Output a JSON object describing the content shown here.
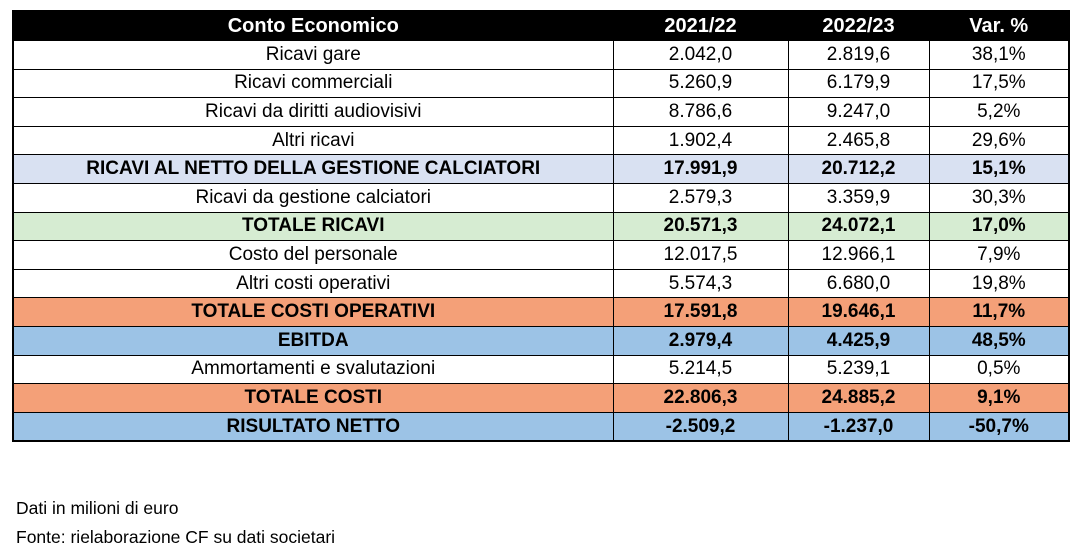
{
  "table": {
    "columns": [
      "Conto Economico",
      "2021/22",
      "2022/23",
      "Var. %"
    ],
    "rows": [
      {
        "label": "Ricavi gare",
        "y2122": "2.042,0",
        "y2223": "2.819,6",
        "var": "38,1%",
        "style": "plain"
      },
      {
        "label": "Ricavi commerciali",
        "y2122": "5.260,9",
        "y2223": "6.179,9",
        "var": "17,5%",
        "style": "plain"
      },
      {
        "label": "Ricavi da diritti audiovisivi",
        "y2122": "8.786,6",
        "y2223": "9.247,0",
        "var": "5,2%",
        "style": "plain"
      },
      {
        "label": "Altri ricavi",
        "y2122": "1.902,4",
        "y2223": "2.465,8",
        "var": "29,6%",
        "style": "plain"
      },
      {
        "label": "RICAVI AL NETTO DELLA GESTIONE CALCIATORI",
        "y2122": "17.991,9",
        "y2223": "20.712,2",
        "var": "15,1%",
        "style": "lavender"
      },
      {
        "label": "Ricavi da gestione calciatori",
        "y2122": "2.579,3",
        "y2223": "3.359,9",
        "var": "30,3%",
        "style": "plain"
      },
      {
        "label": "TOTALE RICAVI",
        "y2122": "20.571,3",
        "y2223": "24.072,1",
        "var": "17,0%",
        "style": "green"
      },
      {
        "label": "Costo del personale",
        "y2122": "12.017,5",
        "y2223": "12.966,1",
        "var": "7,9%",
        "style": "plain"
      },
      {
        "label": "Altri costi operativi",
        "y2122": "5.574,3",
        "y2223": "6.680,0",
        "var": "19,8%",
        "style": "plain"
      },
      {
        "label": "TOTALE COSTI OPERATIVI",
        "y2122": "17.591,8",
        "y2223": "19.646,1",
        "var": "11,7%",
        "style": "orange"
      },
      {
        "label": "EBITDA",
        "y2122": "2.979,4",
        "y2223": "4.425,9",
        "var": "48,5%",
        "style": "blue"
      },
      {
        "label": "Ammortamenti e svalutazioni",
        "y2122": "5.214,5",
        "y2223": "5.239,1",
        "var": "0,5%",
        "style": "plain"
      },
      {
        "label": "TOTALE COSTI",
        "y2122": "22.806,3",
        "y2223": "24.885,2",
        "var": "9,1%",
        "style": "orange"
      },
      {
        "label": "RISULTATO NETTO",
        "y2122": "-2.509,2",
        "y2223": "-1.237,0",
        "var": "-50,7%",
        "style": "blue"
      }
    ]
  },
  "footer": {
    "note_units": "Dati in milioni di euro",
    "note_source": "Fonte: rielaborazione CF su dati societari"
  },
  "colors": {
    "header_bg": "#000000",
    "header_text": "#ffffff",
    "lavender": "#d9e1f2",
    "green": "#d6ecd2",
    "orange": "#f4a078",
    "blue": "#9cc3e6"
  }
}
